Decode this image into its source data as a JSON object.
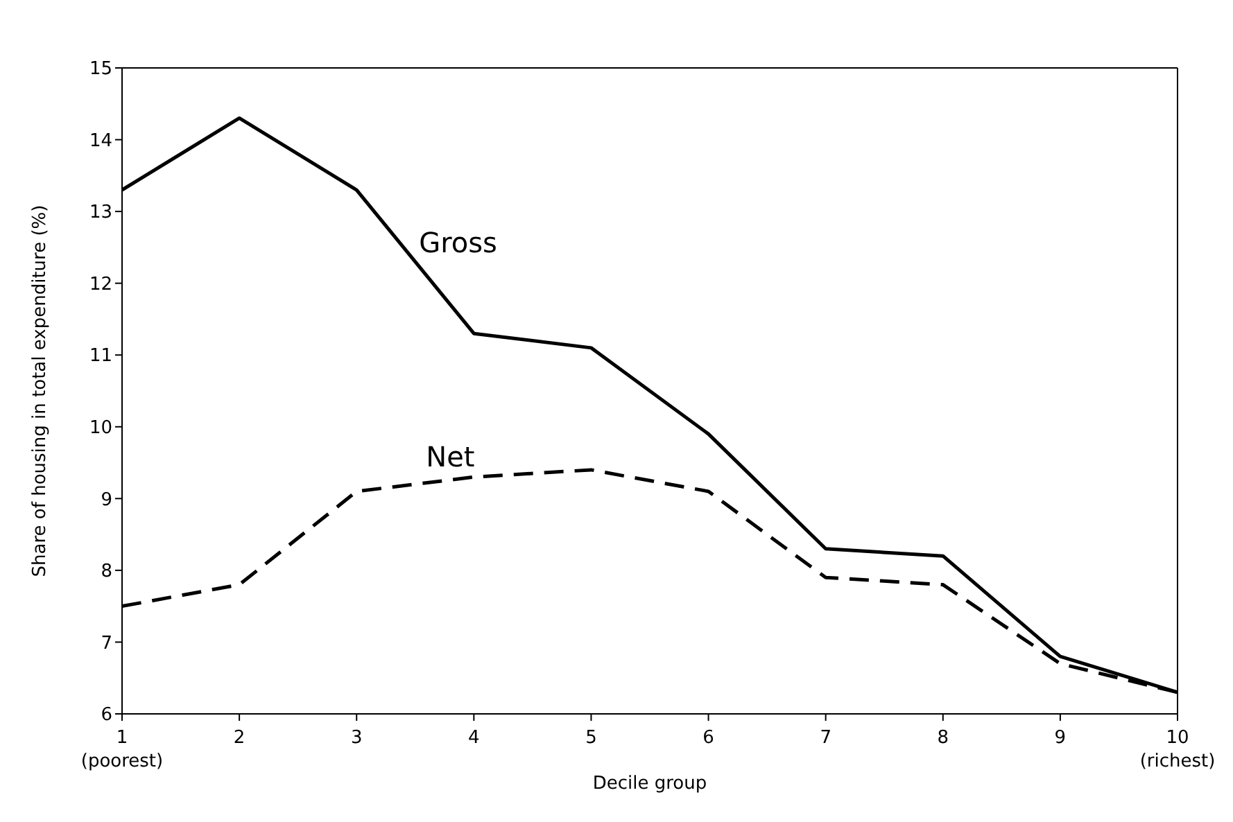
{
  "chart_data": {
    "type": "line",
    "xlabel": "Decile group",
    "ylabel": "Share of housing in total expenditure (%)",
    "x": [
      1,
      2,
      3,
      4,
      5,
      6,
      7,
      8,
      9,
      10
    ],
    "series": [
      {
        "name": "Gross",
        "color": "#000000",
        "line_style": "solid",
        "values": [
          13.3,
          14.3,
          13.3,
          11.3,
          11.1,
          9.9,
          8.3,
          8.2,
          6.8,
          6.3
        ]
      },
      {
        "name": "Net",
        "color": "#000000",
        "line_style": "dashed",
        "values": [
          7.5,
          7.8,
          9.1,
          9.3,
          9.4,
          9.1,
          7.9,
          7.8,
          6.7,
          6.3
        ]
      }
    ],
    "xlim": [
      1,
      10
    ],
    "xticks": [
      {
        "value": 1,
        "label": "1\n(poorest)"
      },
      2,
      3,
      4,
      5,
      6,
      7,
      8,
      9,
      {
        "value": 10,
        "label": "10\n(richest)"
      }
    ],
    "ylim": [
      6,
      15
    ],
    "yticks": [
      6,
      7,
      8,
      9,
      10,
      11,
      12,
      13,
      14,
      15
    ],
    "grid": false,
    "legend": false,
    "marker": "none"
  }
}
